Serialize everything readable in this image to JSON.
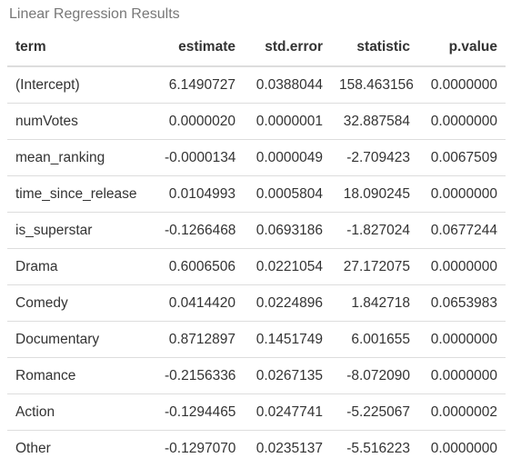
{
  "caption": "Linear Regression Results",
  "table": {
    "headers": {
      "term": "term",
      "estimate": "estimate",
      "std_error": "std.error",
      "statistic": "statistic",
      "p_value": "p.value"
    },
    "rows": [
      {
        "term": "(Intercept)",
        "estimate": "6.1490727",
        "std_error": "0.0388044",
        "statistic": "158.463156",
        "p_value": "0.0000000"
      },
      {
        "term": "numVotes",
        "estimate": "0.0000020",
        "std_error": "0.0000001",
        "statistic": "32.887584",
        "p_value": "0.0000000"
      },
      {
        "term": "mean_ranking",
        "estimate": "-0.0000134",
        "std_error": "0.0000049",
        "statistic": "-2.709423",
        "p_value": "0.0067509"
      },
      {
        "term": "time_since_release",
        "estimate": "0.0104993",
        "std_error": "0.0005804",
        "statistic": "18.090245",
        "p_value": "0.0000000"
      },
      {
        "term": "is_superstar",
        "estimate": "-0.1266468",
        "std_error": "0.0693186",
        "statistic": "-1.827024",
        "p_value": "0.0677244"
      },
      {
        "term": "Drama",
        "estimate": "0.6006506",
        "std_error": "0.0221054",
        "statistic": "27.172075",
        "p_value": "0.0000000"
      },
      {
        "term": "Comedy",
        "estimate": "0.0414420",
        "std_error": "0.0224896",
        "statistic": "1.842718",
        "p_value": "0.0653983"
      },
      {
        "term": "Documentary",
        "estimate": "0.8712897",
        "std_error": "0.1451749",
        "statistic": "6.001655",
        "p_value": "0.0000000"
      },
      {
        "term": "Romance",
        "estimate": "-0.2156336",
        "std_error": "0.0267135",
        "statistic": "-8.072090",
        "p_value": "0.0000000"
      },
      {
        "term": "Action",
        "estimate": "-0.1294465",
        "std_error": "0.0247741",
        "statistic": "-5.225067",
        "p_value": "0.0000002"
      },
      {
        "term": "Other",
        "estimate": "-0.1297070",
        "std_error": "0.0235137",
        "statistic": "-5.516223",
        "p_value": "0.0000000"
      }
    ]
  }
}
